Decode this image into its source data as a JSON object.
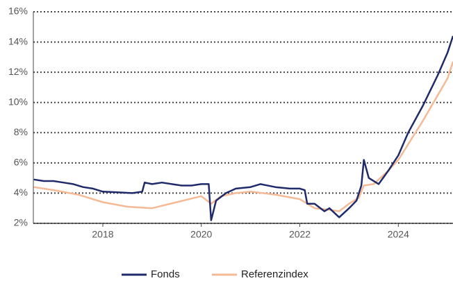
{
  "chart_data": {
    "type": "line",
    "xlim": [
      2016.59,
      2025.11
    ],
    "xticks": [
      2018,
      2020,
      2022,
      2024
    ],
    "ylim": [
      2,
      16
    ],
    "yticks": [
      {
        "value": 2,
        "label": "2%"
      },
      {
        "value": 4,
        "label": "4%"
      },
      {
        "value": 6,
        "label": "6%"
      },
      {
        "value": 8,
        "label": "8%"
      },
      {
        "value": 10,
        "label": "10%"
      },
      {
        "value": 12,
        "label": "12%"
      },
      {
        "value": 14,
        "label": "14%"
      },
      {
        "value": 16,
        "label": "16%"
      }
    ],
    "grid": true,
    "legend": "bottom",
    "series": [
      {
        "name": "Fonds",
        "color": "#1f2a6b",
        "x": [
          2016.6,
          2016.8,
          2017.0,
          2017.2,
          2017.4,
          2017.6,
          2017.8,
          2018.0,
          2018.3,
          2018.6,
          2018.8,
          2018.85,
          2019.0,
          2019.2,
          2019.4,
          2019.6,
          2019.8,
          2020.0,
          2020.15,
          2020.2,
          2020.3,
          2020.5,
          2020.7,
          2021.0,
          2021.2,
          2021.5,
          2021.8,
          2022.0,
          2022.1,
          2022.15,
          2022.3,
          2022.5,
          2022.6,
          2022.8,
          2023.0,
          2023.15,
          2023.25,
          2023.3,
          2023.4,
          2023.6,
          2023.8,
          2024.0,
          2024.2,
          2024.5,
          2024.8,
          2025.0,
          2025.11
        ],
        "values": [
          4.9,
          4.8,
          4.8,
          4.7,
          4.6,
          4.4,
          4.3,
          4.1,
          4.05,
          4.0,
          4.1,
          4.7,
          4.6,
          4.7,
          4.6,
          4.5,
          4.5,
          4.6,
          4.6,
          2.2,
          3.5,
          4.0,
          4.3,
          4.4,
          4.6,
          4.4,
          4.3,
          4.3,
          4.2,
          3.3,
          3.3,
          2.8,
          3.0,
          2.4,
          3.0,
          3.5,
          4.5,
          6.2,
          5.0,
          4.6,
          5.5,
          6.5,
          8.0,
          9.8,
          11.8,
          13.3,
          14.4
        ]
      },
      {
        "name": "Referenzindex",
        "color": "#f5b995",
        "x": [
          2016.6,
          2017.0,
          2017.5,
          2018.0,
          2018.5,
          2019.0,
          2019.5,
          2020.0,
          2020.2,
          2020.4,
          2020.7,
          2021.0,
          2021.5,
          2022.0,
          2022.3,
          2022.6,
          2022.8,
          2023.0,
          2023.2,
          2023.3,
          2023.5,
          2023.8,
          2024.0,
          2024.5,
          2025.0,
          2025.11
        ],
        "values": [
          4.4,
          4.2,
          3.9,
          3.4,
          3.1,
          3.0,
          3.4,
          3.8,
          3.3,
          3.8,
          4.0,
          4.1,
          3.9,
          3.6,
          3.0,
          2.9,
          2.8,
          3.3,
          3.7,
          4.5,
          4.6,
          5.5,
          6.2,
          8.8,
          11.6,
          12.7
        ]
      }
    ]
  }
}
